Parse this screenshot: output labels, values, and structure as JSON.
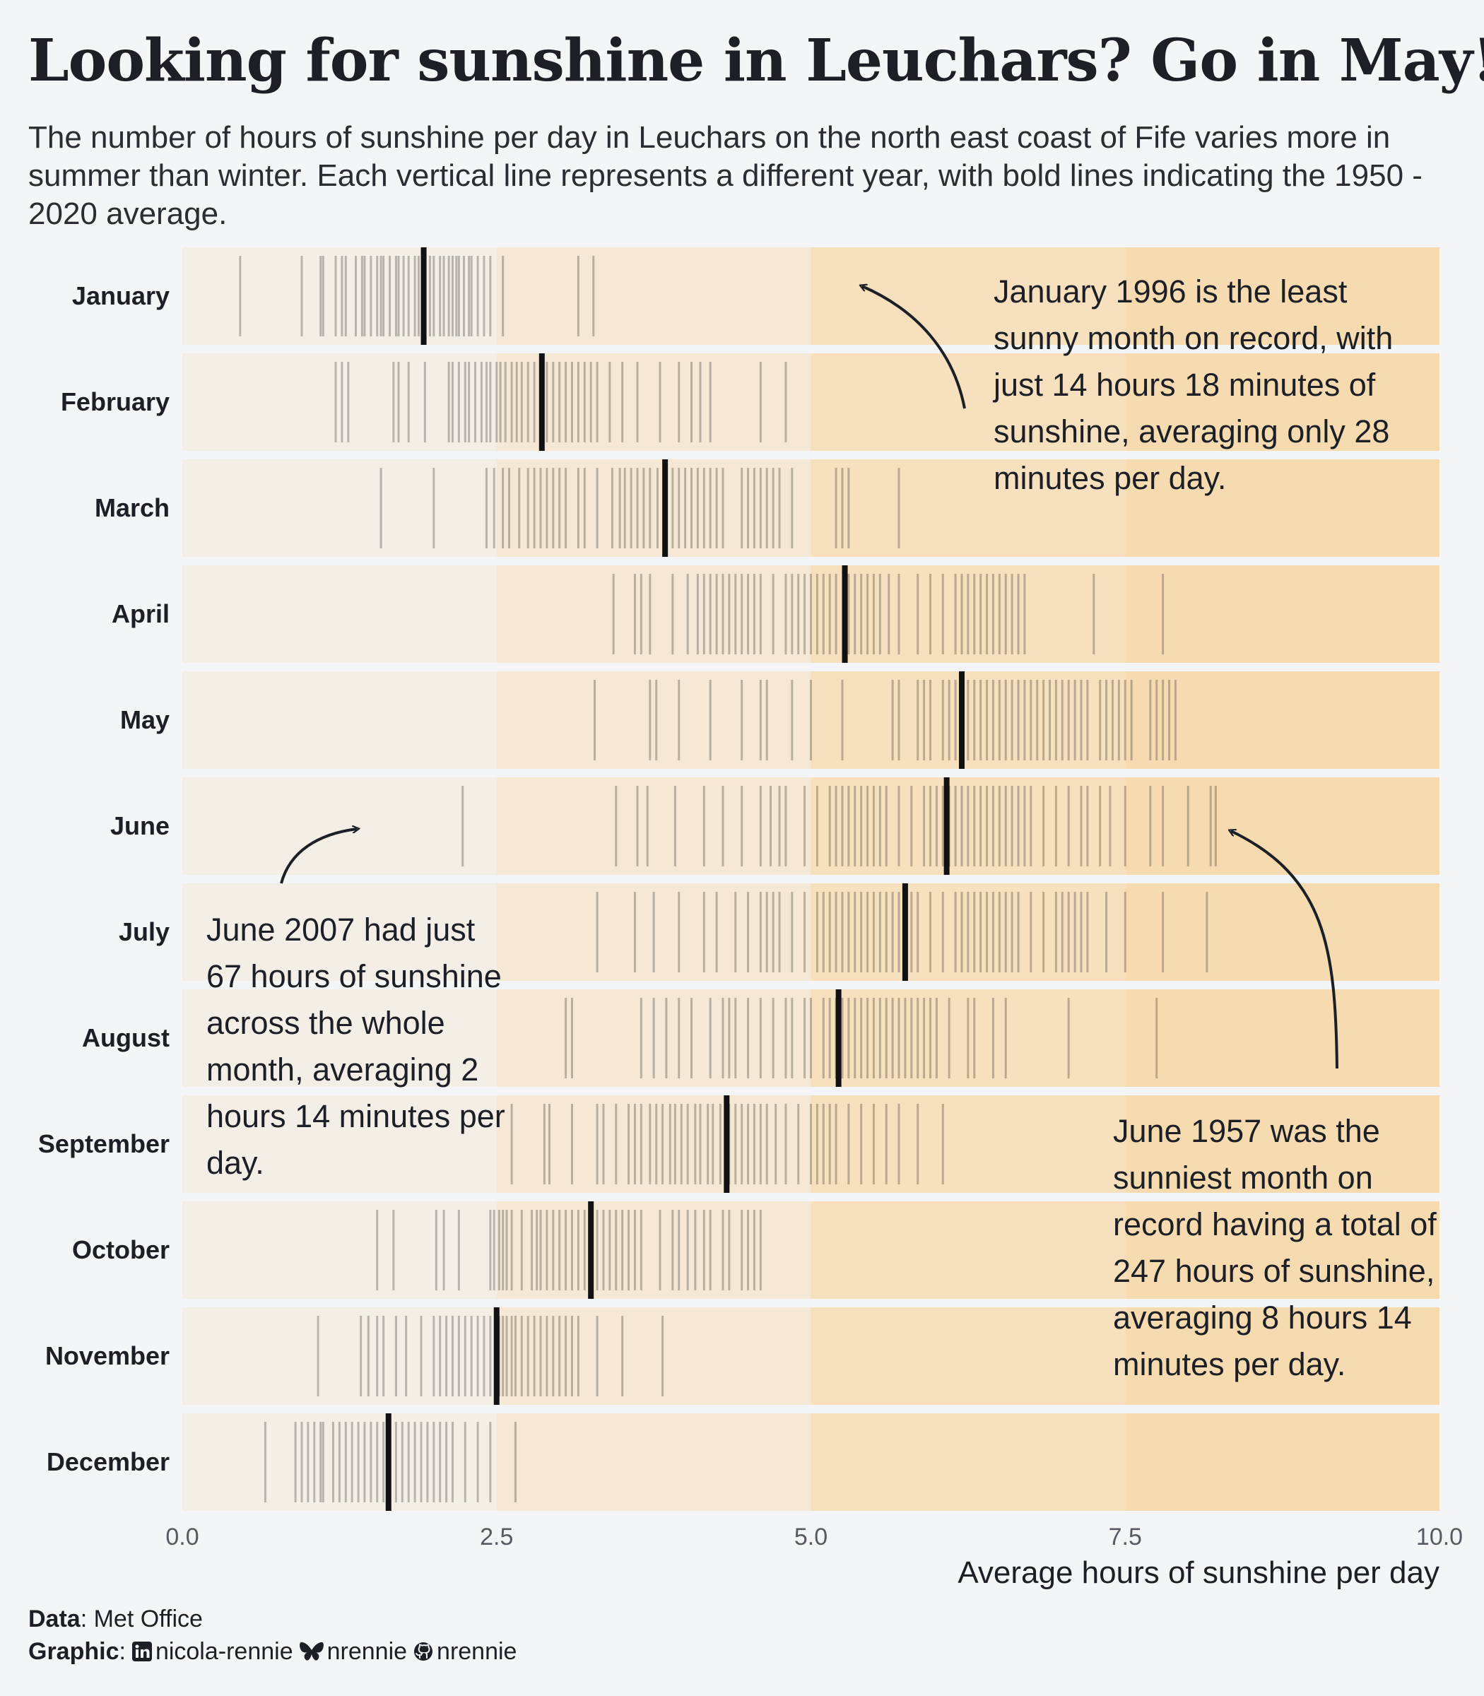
{
  "title": "Looking for sunshine in Leuchars? Go in May!",
  "subtitle": "The number of hours of sunshine per day in Leuchars on the north east coast of Fife varies more in summer than winter. Each vertical line represents a different year, with bold lines indicating the 1950 - 2020 average.",
  "annotations": {
    "jan1996": "January 1996 is the least sunny month on record, with just 14 hours 18 minutes of sunshine, averaging only 28 minutes per day.",
    "jun2007": "June 2007 had just 67 hours of sunshine across the whole month, averaging 2 hours 14 minutes per day.",
    "jun1957": "June 1957 was the sunniest month on record having a total of 247 hours of sunshine, averaging 8 hours 14 minutes per day."
  },
  "caption": {
    "data_label": "Data",
    "data_source": "Met Office",
    "graphic_label": "Graphic",
    "linkedin": "nicola-rennie",
    "bluesky": "nrennie",
    "github": "nrennie"
  },
  "icons": [
    "linkedin-icon",
    "bluesky-icon",
    "github-icon"
  ],
  "colors": {
    "background": "#f4f5f7",
    "band_0_2_5": "#f4efe6",
    "band_2_5_5": "#f6e8d5",
    "band_5_7_5": "#f7e0bd",
    "band_7_5_10": "#f7dbb0",
    "year_line": "#2b2b2b",
    "average_line": "#111111"
  },
  "chart_data": {
    "type": "barcode",
    "xlabel": "Average hours of sunshine per day",
    "xlim": [
      0,
      10
    ],
    "xticks": [
      "0.0",
      "2.5",
      "5.0",
      "7.5",
      "10.0"
    ],
    "background_bands": [
      [
        0,
        2.5
      ],
      [
        2.5,
        5
      ],
      [
        5,
        7.5
      ],
      [
        7.5,
        10
      ]
    ],
    "months": [
      {
        "name": "January",
        "average": 1.92,
        "years": [
          0.46,
          0.95,
          1.1,
          1.12,
          1.22,
          1.27,
          1.3,
          1.38,
          1.43,
          1.45,
          1.5,
          1.55,
          1.58,
          1.6,
          1.65,
          1.7,
          1.72,
          1.76,
          1.8,
          1.85,
          1.88,
          1.92,
          1.97,
          2.0,
          2.05,
          2.08,
          2.12,
          2.15,
          2.18,
          2.2,
          2.24,
          2.28,
          2.3,
          2.35,
          2.4,
          2.45,
          2.55,
          3.15,
          3.27
        ]
      },
      {
        "name": "February",
        "average": 2.86,
        "years": [
          1.22,
          1.27,
          1.32,
          1.68,
          1.72,
          1.8,
          1.93,
          2.12,
          2.15,
          2.2,
          2.25,
          2.28,
          2.33,
          2.38,
          2.42,
          2.45,
          2.5,
          2.53,
          2.57,
          2.62,
          2.66,
          2.7,
          2.75,
          2.8,
          2.85,
          2.9,
          2.95,
          3.0,
          3.05,
          3.1,
          3.15,
          3.2,
          3.25,
          3.3,
          3.4,
          3.5,
          3.62,
          3.8,
          3.95,
          4.05,
          4.12,
          4.2,
          4.6,
          4.8
        ]
      },
      {
        "name": "March",
        "average": 3.84,
        "years": [
          1.58,
          2.0,
          2.42,
          2.48,
          2.55,
          2.6,
          2.68,
          2.75,
          2.8,
          2.85,
          2.9,
          2.95,
          3.0,
          3.05,
          3.15,
          3.2,
          3.3,
          3.42,
          3.48,
          3.52,
          3.57,
          3.62,
          3.67,
          3.72,
          3.78,
          3.84,
          3.9,
          3.95,
          4.0,
          4.05,
          4.1,
          4.15,
          4.2,
          4.25,
          4.3,
          4.45,
          4.5,
          4.55,
          4.6,
          4.65,
          4.7,
          4.75,
          4.85,
          5.2,
          5.25,
          5.3,
          5.7
        ]
      },
      {
        "name": "April",
        "average": 5.27,
        "years": [
          3.43,
          3.6,
          3.65,
          3.72,
          3.9,
          4.02,
          4.1,
          4.15,
          4.2,
          4.25,
          4.3,
          4.35,
          4.4,
          4.45,
          4.5,
          4.55,
          4.6,
          4.7,
          4.8,
          4.85,
          4.9,
          4.95,
          5.0,
          5.05,
          5.1,
          5.15,
          5.2,
          5.3,
          5.35,
          5.4,
          5.45,
          5.5,
          5.55,
          5.62,
          5.7,
          5.85,
          5.95,
          6.05,
          6.15,
          6.2,
          6.25,
          6.3,
          6.35,
          6.4,
          6.45,
          6.5,
          6.55,
          6.6,
          6.65,
          6.7,
          7.25,
          7.8
        ]
      },
      {
        "name": "May",
        "average": 6.2,
        "years": [
          3.28,
          3.72,
          3.77,
          3.95,
          4.2,
          4.45,
          4.6,
          4.65,
          4.85,
          5.0,
          5.25,
          5.65,
          5.7,
          5.85,
          5.9,
          5.95,
          6.05,
          6.1,
          6.15,
          6.25,
          6.3,
          6.35,
          6.4,
          6.45,
          6.5,
          6.55,
          6.6,
          6.65,
          6.7,
          6.75,
          6.8,
          6.85,
          6.9,
          6.95,
          7.0,
          7.05,
          7.1,
          7.15,
          7.2,
          7.3,
          7.35,
          7.4,
          7.45,
          7.5,
          7.55,
          7.7,
          7.75,
          7.8,
          7.85,
          7.9
        ]
      },
      {
        "name": "June",
        "average": 6.08,
        "years": [
          2.23,
          3.45,
          3.62,
          3.7,
          3.92,
          4.15,
          4.3,
          4.45,
          4.6,
          4.68,
          4.75,
          4.8,
          4.95,
          5.05,
          5.15,
          5.2,
          5.25,
          5.3,
          5.35,
          5.4,
          5.45,
          5.5,
          5.55,
          5.6,
          5.7,
          5.8,
          5.9,
          5.95,
          6.0,
          6.05,
          6.1,
          6.15,
          6.2,
          6.25,
          6.3,
          6.35,
          6.4,
          6.45,
          6.5,
          6.55,
          6.6,
          6.65,
          6.7,
          6.75,
          6.85,
          6.95,
          7.05,
          7.15,
          7.2,
          7.3,
          7.38,
          7.5,
          7.7,
          7.8,
          8.0,
          8.18,
          8.22
        ]
      },
      {
        "name": "July",
        "average": 5.75,
        "years": [
          3.3,
          3.6,
          3.75,
          3.95,
          4.15,
          4.25,
          4.4,
          4.5,
          4.6,
          4.65,
          4.7,
          4.75,
          4.85,
          4.95,
          5.05,
          5.1,
          5.15,
          5.2,
          5.25,
          5.3,
          5.35,
          5.4,
          5.45,
          5.5,
          5.55,
          5.6,
          5.65,
          5.7,
          5.8,
          5.85,
          5.95,
          6.05,
          6.15,
          6.2,
          6.25,
          6.3,
          6.35,
          6.4,
          6.45,
          6.5,
          6.55,
          6.6,
          6.65,
          6.75,
          6.85,
          6.95,
          7.0,
          7.05,
          7.1,
          7.15,
          7.2,
          7.35,
          7.5,
          7.8,
          8.15
        ]
      },
      {
        "name": "August",
        "average": 5.22,
        "years": [
          3.05,
          3.1,
          3.65,
          3.75,
          3.85,
          3.95,
          4.05,
          4.2,
          4.3,
          4.35,
          4.4,
          4.5,
          4.6,
          4.7,
          4.8,
          4.85,
          4.95,
          5.0,
          5.1,
          5.15,
          5.2,
          5.25,
          5.3,
          5.35,
          5.4,
          5.45,
          5.5,
          5.55,
          5.6,
          5.65,
          5.7,
          5.75,
          5.8,
          5.85,
          5.9,
          5.95,
          6.0,
          6.1,
          6.25,
          6.3,
          6.45,
          6.55,
          7.05,
          7.75
        ]
      },
      {
        "name": "September",
        "average": 4.33,
        "years": [
          2.62,
          2.88,
          2.92,
          3.1,
          3.3,
          3.35,
          3.45,
          3.55,
          3.6,
          3.65,
          3.72,
          3.77,
          3.82,
          3.88,
          3.92,
          3.97,
          4.02,
          4.08,
          4.12,
          4.18,
          4.22,
          4.28,
          4.35,
          4.4,
          4.45,
          4.5,
          4.55,
          4.6,
          4.65,
          4.72,
          4.8,
          4.9,
          5.0,
          5.05,
          5.1,
          5.15,
          5.2,
          5.3,
          5.4,
          5.5,
          5.6,
          5.7,
          5.85,
          6.05
        ]
      },
      {
        "name": "October",
        "average": 3.25,
        "years": [
          1.55,
          1.68,
          2.02,
          2.08,
          2.2,
          2.45,
          2.48,
          2.52,
          2.55,
          2.58,
          2.62,
          2.7,
          2.78,
          2.82,
          2.85,
          2.9,
          2.95,
          3.0,
          3.05,
          3.1,
          3.15,
          3.2,
          3.3,
          3.35,
          3.4,
          3.45,
          3.5,
          3.55,
          3.6,
          3.65,
          3.8,
          3.9,
          3.95,
          4.02,
          4.08,
          4.15,
          4.2,
          4.3,
          4.35,
          4.45,
          4.5,
          4.55,
          4.6
        ]
      },
      {
        "name": "November",
        "average": 2.5,
        "years": [
          1.08,
          1.42,
          1.48,
          1.55,
          1.6,
          1.7,
          1.78,
          1.9,
          2.0,
          2.05,
          2.1,
          2.15,
          2.2,
          2.25,
          2.3,
          2.35,
          2.4,
          2.45,
          2.52,
          2.55,
          2.58,
          2.62,
          2.65,
          2.7,
          2.75,
          2.8,
          2.85,
          2.9,
          2.95,
          3.0,
          3.05,
          3.1,
          3.15,
          3.3,
          3.5,
          3.82
        ]
      },
      {
        "name": "December",
        "average": 1.64,
        "years": [
          0.66,
          0.9,
          0.95,
          1.0,
          1.05,
          1.1,
          1.12,
          1.2,
          1.25,
          1.3,
          1.35,
          1.4,
          1.45,
          1.5,
          1.55,
          1.6,
          1.65,
          1.7,
          1.75,
          1.8,
          1.85,
          1.9,
          1.95,
          2.0,
          2.05,
          2.1,
          2.15,
          2.25,
          2.35,
          2.45,
          2.65
        ]
      }
    ]
  }
}
